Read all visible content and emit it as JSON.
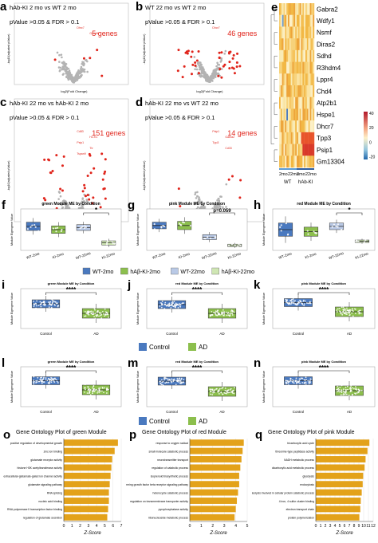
{
  "colors": {
    "green": "#8cbf4d",
    "blue": "#4a79bf",
    "light_blue": "#b9c9e6",
    "light_green": "#cfe6b3",
    "red": "#e0241b",
    "gray": "#b3b3b3",
    "orange": "#e3a21a"
  },
  "volcano": [
    {
      "label": "a",
      "title1": "hAb-KI 2 mo vs WT 2 mo",
      "title2": "pValue >0.05 & FDR > 0.1",
      "count": "5 genes",
      "ylabel": "-log10(adjusted pValue)",
      "xlabel": "log2(Fold Change)",
      "genes": [
        "Dhrc7",
        "Gpm6b"
      ]
    },
    {
      "label": "b",
      "title1": "WT 22 mo vs WT 2 mo",
      "title2": "pValue >0.05 & FDR > 0.1",
      "count": "46 genes",
      "ylabel": "-log10(adjusted pValue)",
      "xlabel": "log2(Fold Change)",
      "genes": [
        "Dhcr7"
      ]
    },
    {
      "label": "c",
      "title1": "hAb-KI 22 mo vs hAb-KI 2 mo",
      "title2": "pValue >0.05 & FDR > 0.1",
      "count": "151 genes",
      "ylabel": "-log10(adjusted pValue)",
      "xlabel": "log2(Fold Change)",
      "genes": [
        "Cd83",
        "H2-K1",
        "Psip1",
        "Ttr",
        "Tspan9"
      ]
    },
    {
      "label": "d",
      "title1": "hAb-KI 22 mo vs WT 22 mo",
      "title2": "pValue >0.05 & FDR > 0.1",
      "count": "14 genes",
      "ylabel": "-log10(adjusted pValue)",
      "xlabel": "log2(Fold Change)",
      "genes": [
        "Psip1",
        "Gabra2",
        "Tpp3",
        "Cd33"
      ]
    }
  ],
  "heatmap": {
    "label": "e",
    "genes": [
      "Gabra2",
      "Wdfy1",
      "Nsmf",
      "Diras2",
      "Sdhd",
      "R3hdm4",
      "Lppr4",
      "Chd4",
      "Atp2b1",
      "Hspe1",
      "Dhcr7",
      "Tpp3",
      "Psip1",
      "Gm13304"
    ],
    "col_labels": [
      "2mo",
      "22mo",
      "2mo",
      "22mo"
    ],
    "group_labels": [
      "WT",
      "hAb-KI"
    ],
    "legend_ticks": [
      "40",
      "20",
      "0",
      "-20"
    ]
  },
  "module_small": [
    {
      "label": "f",
      "title": "green Module ME by Condition",
      "ylabel": "Module Eigengene Value",
      "categories": [
        "WT-2mo",
        "KI-2mo",
        "WT-22mo",
        "KI-22mo"
      ],
      "sig": "*"
    },
    {
      "label": "g",
      "title": "pink Module ME by Condition",
      "ylabel": "Module Eigengene Value",
      "categories": [
        "WT-2mo",
        "KI-2mo",
        "WT-22mo",
        "KI-22mo"
      ],
      "sig": "p=0.059"
    },
    {
      "label": "h",
      "title": "red Module ME by Condition",
      "ylabel": "Module Eigengene Value",
      "categories": [
        "WT-2mo",
        "KI-2mo",
        "WT-22mo",
        "KI-22mo"
      ],
      "sig": "*"
    }
  ],
  "legend_fgh": [
    "WT-2mo",
    "hAβ-KI-2mo",
    "WT-22mo",
    "hAβ-KI-22mo"
  ],
  "module_large": [
    {
      "label": "i",
      "title": "green Module ME by Condition",
      "ylabel": "Module Eigengene Value",
      "categories": [
        "Control",
        "AD"
      ],
      "sig": "****"
    },
    {
      "label": "j",
      "title": "red Module ME by Condition",
      "ylabel": "Module Eigengene Value",
      "categories": [
        "Control",
        "AD"
      ],
      "sig": "****"
    },
    {
      "label": "k",
      "title": "pink Module ME by Condition",
      "ylabel": "Module Eigengene Value",
      "categories": [
        "Control",
        "AD"
      ],
      "sig": "****"
    },
    {
      "label": "l",
      "title": "green Module ME by Condition",
      "ylabel": "Module Eigengene Value",
      "categories": [
        "Control",
        "AD"
      ],
      "sig": "****"
    },
    {
      "label": "m",
      "title": "red Module ME by Condition",
      "ylabel": "Module Eigengene Value",
      "categories": [
        "Control",
        "AD"
      ],
      "sig": "****"
    },
    {
      "label": "n",
      "title": "pink Module ME by Condition",
      "ylabel": "Module Eigengene Value",
      "categories": [
        "Control",
        "AD"
      ],
      "sig": "****"
    }
  ],
  "legend_ctrl_ad": [
    "Control",
    "AD"
  ],
  "chart_data": [
    {
      "type": "bar",
      "label": "o",
      "title": "Gene Ontology Plot of green Module",
      "xlabel": "Z-Score",
      "categories": [
        "positive regulation of developmental growth",
        "zinc ion binding",
        "glutamate receptor activity",
        "histone H3K acetyltransferase activity",
        "extracellular-glutamate-gated ion channel activity",
        "glutamate signaling pathway",
        "RNA splicing",
        "nucleic acid binding",
        "RNA polymerase II transcription factor binding",
        "regulation of glutamate secretion"
      ],
      "values": [
        6.6,
        6.2,
        5.9,
        5.8,
        5.7,
        5.6,
        5.5,
        5.5,
        5.4,
        5.3
      ],
      "xlim": [
        0,
        7
      ],
      "xticks": [
        "0",
        "1",
        "2",
        "3",
        "4",
        "5",
        "6",
        "7"
      ]
    },
    {
      "type": "bar",
      "label": "p",
      "title": "Gene Ontology Plot of red Module",
      "xlabel": "Z-Score",
      "categories": [
        "response to oxygen radical",
        "small molecule catabolic process",
        "neurotransmitter transport",
        "regulation of catabolic process",
        "isoprenoid biosynthetic process",
        "transforming growth factor beta receptor signaling pathway",
        "heterocycle catabolic process",
        "regulation on transmembrane transporter activity",
        "pyrophosphatase activity",
        "ribonucleoside metabolic process"
      ],
      "values": [
        4.7,
        4.6,
        4.5,
        4.4,
        4.3,
        4.3,
        4.2,
        4.1,
        4.0,
        3.9
      ],
      "xlim": [
        0,
        5
      ],
      "xticks": [
        "0",
        "1",
        "2",
        "3",
        "4",
        "5"
      ]
    },
    {
      "type": "bar",
      "label": "q",
      "title": "Gene Ontology Plot of pink Module",
      "xlabel": "Z-Score",
      "categories": [
        "tricarboxylic acid cycle",
        "threonine-type peptidase activity",
        "NADH metabolic process",
        "dicarboxylic acid metabolic process",
        "glycolysis",
        "endocytosis",
        "proteolysis involved in cellular protein catabolic process",
        "4 iron, 4 sulfur cluster binding",
        "electron transport chain",
        "protein polymerization"
      ],
      "values": [
        11.2,
        10.8,
        10.4,
        10.2,
        9.9,
        9.8,
        9.6,
        9.4,
        9.3,
        9.1
      ],
      "xlim": [
        0,
        12
      ],
      "xticks": [
        "0",
        "1",
        "2",
        "3",
        "4",
        "5",
        "6",
        "7",
        "8",
        "9",
        "10",
        "11",
        "12"
      ]
    }
  ]
}
